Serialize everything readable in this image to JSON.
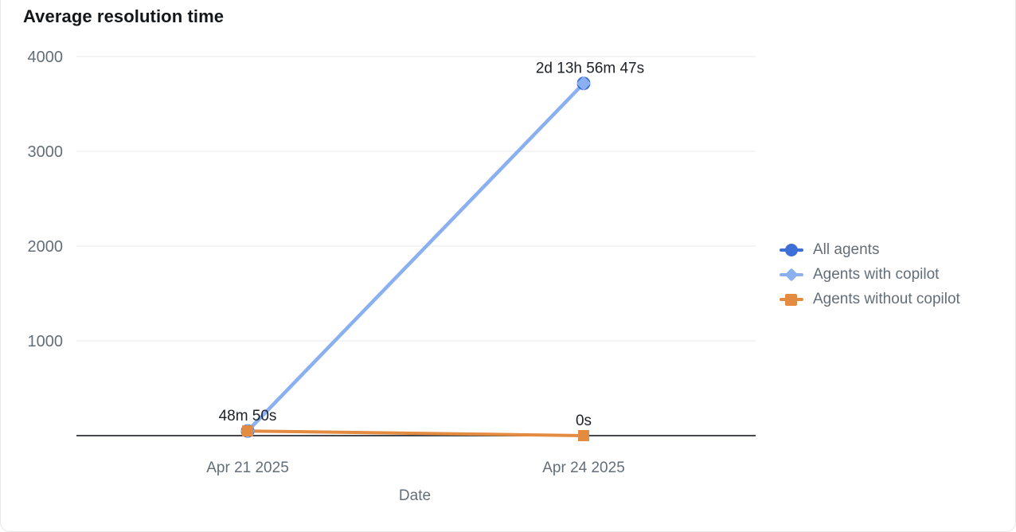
{
  "card": {
    "title": "Average resolution time"
  },
  "chart_data": {
    "type": "line",
    "title": "Average resolution time",
    "xlabel": "Date",
    "ylabel": "",
    "x": [
      "Apr 21 2025",
      "Apr 24 2025"
    ],
    "ylim": [
      0,
      4000
    ],
    "yticks": [
      4000,
      3000,
      2000,
      1000
    ],
    "grid": true,
    "legend_position": "right",
    "y_unit": "minutes",
    "series": [
      {
        "name": "All agents",
        "color": "#3e6fd6",
        "marker": "circle",
        "values": [
          48.83,
          3716.78
        ]
      },
      {
        "name": "Agents with copilot",
        "color": "#8ab0f0",
        "marker": "diamond",
        "values": [
          48.83,
          3716.78
        ]
      },
      {
        "name": "Agents without copilot",
        "color": "#e28b41",
        "marker": "square",
        "values": [
          48.83,
          0
        ]
      }
    ],
    "point_labels": [
      {
        "text": "48m 50s",
        "x_index": 0,
        "value": 48.83
      },
      {
        "text": "2d 13h 56m 47s",
        "x_index": 1,
        "value": 3716.78
      },
      {
        "text": "0s",
        "x_index": 1,
        "value": 0
      }
    ],
    "colors": {
      "grid": "#e8eaec",
      "baseline": "#45494e",
      "axis_text": "#646e78",
      "label_text": "#1d2126"
    }
  }
}
